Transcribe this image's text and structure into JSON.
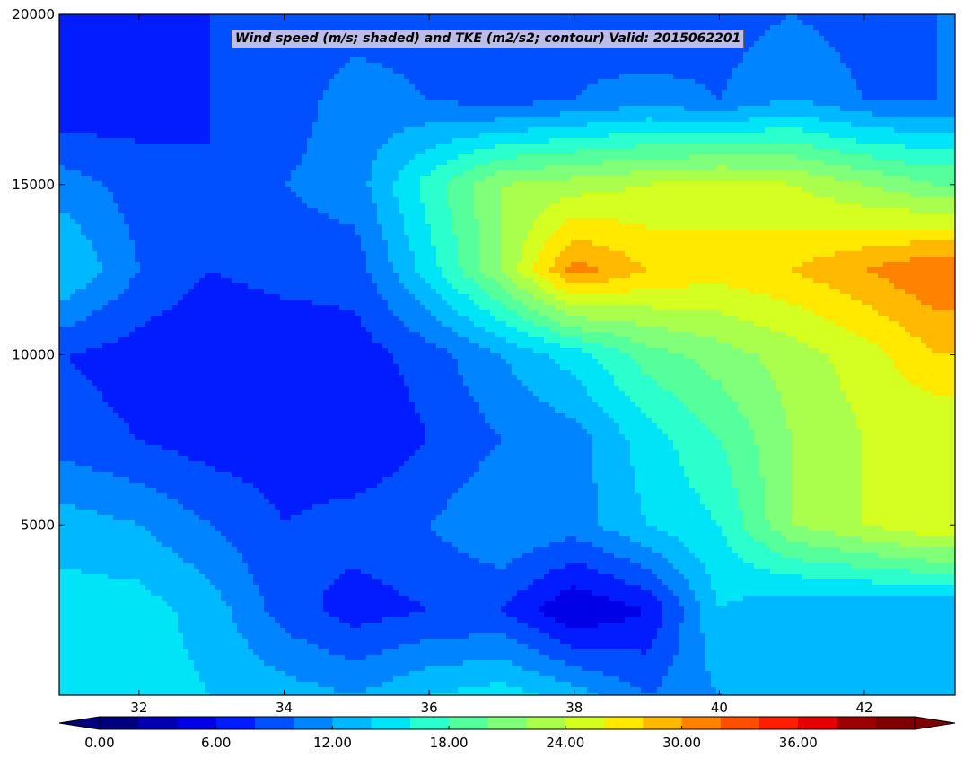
{
  "chart_data": {
    "type": "heatmap",
    "title": "Wind speed (m/s; shaded) and TKE (m2/s2; contour) Valid: 2015062201",
    "xlabel": "",
    "ylabel": "",
    "xlim": [
      30.9,
      43.25
    ],
    "ylim": [
      0,
      20000
    ],
    "x_ticks": [
      32,
      34,
      36,
      38,
      40,
      42
    ],
    "y_ticks": [
      5000,
      10000,
      15000,
      20000
    ],
    "colorbar": {
      "orientation": "horizontal",
      "min": 0,
      "max": 42,
      "step": 2,
      "extend": "both",
      "tick_values": [
        0,
        6,
        12,
        18,
        24,
        30,
        36
      ],
      "tick_labels": [
        "0.00",
        "6.00",
        "12.00",
        "18.00",
        "24.00",
        "30.00",
        "36.00"
      ],
      "colors": [
        "#00007f",
        "#0000b3",
        "#0000e6",
        "#001cff",
        "#0050ff",
        "#0084ff",
        "#00b8ff",
        "#00e4f8",
        "#2affcd",
        "#54ff9c",
        "#7fff7a",
        "#aaff4d",
        "#d5ff21",
        "#ffe900",
        "#ffb900",
        "#ff8200",
        "#ff4e00",
        "#ff1e00",
        "#e60000",
        "#9a0000",
        "#7f0000"
      ]
    },
    "field": {
      "x": [
        31,
        32,
        33,
        34,
        35,
        36,
        37,
        38,
        39,
        40,
        41,
        42,
        43
      ],
      "y": [
        0,
        2500,
        5000,
        7500,
        10000,
        12500,
        15000,
        17500,
        20000
      ],
      "values": [
        [
          14,
          15,
          14,
          13,
          12,
          14,
          15,
          13,
          10,
          12,
          12,
          13,
          13
        ],
        [
          15,
          15,
          13,
          9,
          7,
          8,
          8,
          4,
          6,
          14,
          12,
          12,
          12
        ],
        [
          13,
          12,
          10,
          8,
          9,
          10,
          12,
          11,
          14,
          16,
          22,
          24,
          26
        ],
        [
          9,
          8,
          7,
          7,
          6,
          8,
          10,
          11,
          15,
          18,
          22,
          24,
          24
        ],
        [
          8,
          7,
          6,
          6,
          7,
          9,
          12,
          15,
          19,
          21,
          23,
          25,
          28
        ],
        [
          14,
          10,
          8,
          9,
          9,
          15,
          22,
          31,
          28,
          27,
          28,
          30,
          32
        ],
        [
          11,
          9,
          8,
          10,
          11,
          17,
          22,
          23,
          24,
          25,
          24,
          22,
          20
        ],
        [
          6,
          7,
          8,
          9,
          11,
          10,
          9,
          10,
          11,
          10,
          12,
          10,
          10
        ],
        [
          8,
          7,
          8,
          9,
          9,
          9,
          9,
          9,
          8,
          9,
          10,
          9,
          10
        ]
      ]
    }
  }
}
